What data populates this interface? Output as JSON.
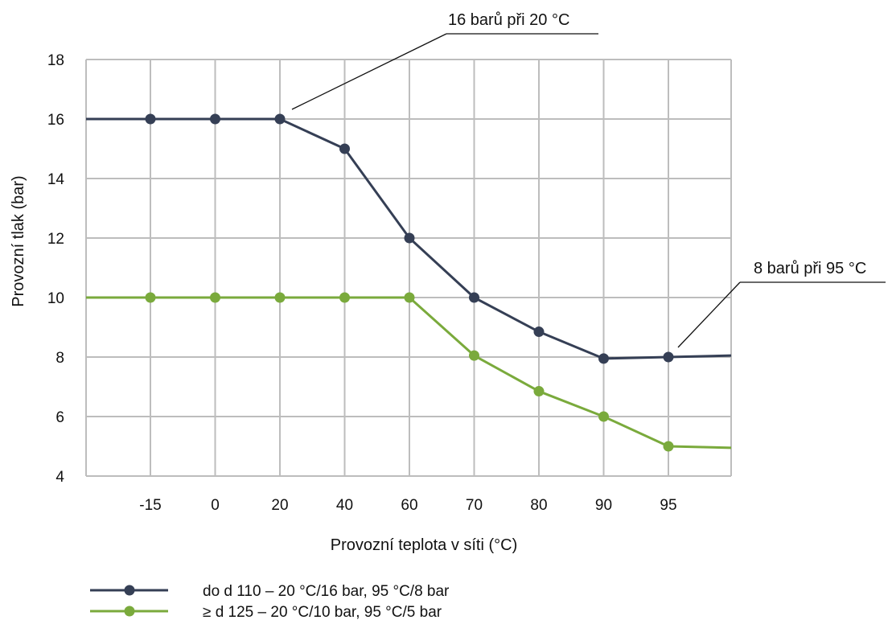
{
  "chart_data": {
    "type": "line",
    "title": "",
    "xlabel": "Provozní teplota v síti (°C)",
    "ylabel": "Provozní tlak (bar)",
    "categories": [
      "-15",
      "0",
      "20",
      "40",
      "60",
      "70",
      "80",
      "90",
      "95"
    ],
    "ylim": [
      4,
      18
    ],
    "yticks": [
      4,
      6,
      8,
      10,
      12,
      14,
      16,
      18
    ],
    "grid": true,
    "legend": "bottom-left",
    "series": [
      {
        "name": "do d 110 – 20 °C/16 bar, 95 °C/8 bar",
        "color": "#353f55",
        "values": [
          16,
          16,
          16,
          15,
          12,
          10,
          8.85,
          7.95,
          8
        ],
        "start_value": 16,
        "end_value": 8.05
      },
      {
        "name": "≥ d 125 – 20 °C/10 bar, 95 °C/5 bar",
        "color": "#7aaa3c",
        "values": [
          10,
          10,
          10,
          10,
          10,
          8.05,
          6.85,
          6,
          5
        ],
        "start_value": 10,
        "end_value": 4.95
      }
    ],
    "annotations": [
      {
        "text": "16 barů při 20 °C",
        "category": "20",
        "value": 16
      },
      {
        "text": "8 barů při 95 °C",
        "category": "95",
        "value": 8
      }
    ]
  }
}
